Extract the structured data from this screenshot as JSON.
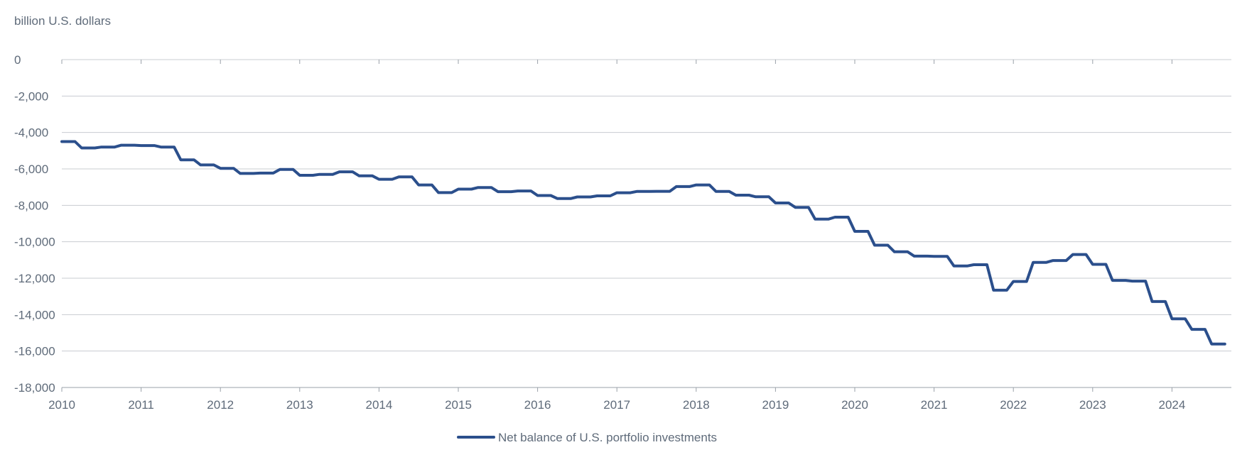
{
  "chart_data": {
    "type": "line",
    "title": "",
    "xlabel": "",
    "ylabel": "billion U.S. dollars",
    "xlim": [
      "2010-01",
      "2024-09"
    ],
    "ylim": [
      -18000,
      0
    ],
    "x_ticks": [
      "2010",
      "2011",
      "2012",
      "2013",
      "2014",
      "2015",
      "2016",
      "2017",
      "2018",
      "2019",
      "2020",
      "2021",
      "2022",
      "2023",
      "2024"
    ],
    "y_ticks": [
      "0",
      "-2,000",
      "-4,000",
      "-6,000",
      "-8,000",
      "-10,000",
      "-12,000",
      "-14,000",
      "-16,000",
      "-18,000"
    ],
    "y_tick_values": [
      0,
      -2000,
      -4000,
      -6000,
      -8000,
      -10000,
      -12000,
      -14000,
      -16000,
      -18000
    ],
    "grid": "horizontal",
    "legend_position": "bottom-center",
    "colors": {
      "series": "#2b4f8c",
      "grid": "#c8ccd1",
      "axis": "#9aa1a9",
      "text": "#5f6b7a"
    },
    "series": [
      {
        "name": "Net balance of U.S. portfolio investments",
        "x": [
          "2010-01",
          "2010-02",
          "2010-03",
          "2010-04",
          "2010-05",
          "2010-06",
          "2010-07",
          "2010-08",
          "2010-09",
          "2010-10",
          "2010-11",
          "2010-12",
          "2011-01",
          "2011-02",
          "2011-03",
          "2011-04",
          "2011-05",
          "2011-06",
          "2011-07",
          "2011-08",
          "2011-09",
          "2011-10",
          "2011-11",
          "2011-12",
          "2012-01",
          "2012-02",
          "2012-03",
          "2012-04",
          "2012-05",
          "2012-06",
          "2012-07",
          "2012-08",
          "2012-09",
          "2012-10",
          "2012-11",
          "2012-12",
          "2013-01",
          "2013-02",
          "2013-03",
          "2013-04",
          "2013-05",
          "2013-06",
          "2013-07",
          "2013-08",
          "2013-09",
          "2013-10",
          "2013-11",
          "2013-12",
          "2014-01",
          "2014-02",
          "2014-03",
          "2014-04",
          "2014-05",
          "2014-06",
          "2014-07",
          "2014-08",
          "2014-09",
          "2014-10",
          "2014-11",
          "2014-12",
          "2015-01",
          "2015-02",
          "2015-03",
          "2015-04",
          "2015-05",
          "2015-06",
          "2015-07",
          "2015-08",
          "2015-09",
          "2015-10",
          "2015-11",
          "2015-12",
          "2016-01",
          "2016-02",
          "2016-03",
          "2016-04",
          "2016-05",
          "2016-06",
          "2016-07",
          "2016-08",
          "2016-09",
          "2016-10",
          "2016-11",
          "2016-12",
          "2017-01",
          "2017-02",
          "2017-03",
          "2017-04",
          "2017-05",
          "2017-06",
          "2017-07",
          "2017-08",
          "2017-09",
          "2017-10",
          "2017-11",
          "2017-12",
          "2018-01",
          "2018-02",
          "2018-03",
          "2018-04",
          "2018-05",
          "2018-06",
          "2018-07",
          "2018-08",
          "2018-09",
          "2018-10",
          "2018-11",
          "2018-12",
          "2019-01",
          "2019-02",
          "2019-03",
          "2019-04",
          "2019-05",
          "2019-06",
          "2019-07",
          "2019-08",
          "2019-09",
          "2019-10",
          "2019-11",
          "2019-12",
          "2020-01",
          "2020-02",
          "2020-03",
          "2020-04",
          "2020-05",
          "2020-06",
          "2020-07",
          "2020-08",
          "2020-09",
          "2020-10",
          "2020-11",
          "2020-12",
          "2021-01",
          "2021-02",
          "2021-03",
          "2021-04",
          "2021-05",
          "2021-06",
          "2021-07",
          "2021-08",
          "2021-09",
          "2021-10",
          "2021-11",
          "2021-12",
          "2022-01",
          "2022-02",
          "2022-03",
          "2022-04",
          "2022-05",
          "2022-06",
          "2022-07",
          "2022-08",
          "2022-09",
          "2022-10",
          "2022-11",
          "2022-12",
          "2023-01",
          "2023-02",
          "2023-03",
          "2023-04",
          "2023-05",
          "2023-06",
          "2023-07",
          "2023-08",
          "2023-09",
          "2023-10",
          "2023-11",
          "2023-12",
          "2024-01",
          "2024-02",
          "2024-03",
          "2024-04",
          "2024-05",
          "2024-06",
          "2024-07",
          "2024-08",
          "2024-09"
        ],
        "values": [
          -4500,
          -4500,
          -4500,
          -4850,
          -4850,
          -4850,
          -4800,
          -4800,
          -4800,
          -4700,
          -4700,
          -4700,
          -4720,
          -4720,
          -4720,
          -4800,
          -4800,
          -4800,
          -5500,
          -5500,
          -5500,
          -5780,
          -5780,
          -5780,
          -5970,
          -5970,
          -5970,
          -6250,
          -6250,
          -6250,
          -6230,
          -6230,
          -6230,
          -6030,
          -6030,
          -6030,
          -6350,
          -6350,
          -6350,
          -6300,
          -6300,
          -6300,
          -6160,
          -6160,
          -6160,
          -6380,
          -6380,
          -6380,
          -6570,
          -6570,
          -6570,
          -6440,
          -6440,
          -6440,
          -6880,
          -6880,
          -6880,
          -7300,
          -7300,
          -7300,
          -7110,
          -7110,
          -7110,
          -7020,
          -7020,
          -7020,
          -7250,
          -7250,
          -7250,
          -7210,
          -7210,
          -7210,
          -7460,
          -7460,
          -7460,
          -7630,
          -7630,
          -7630,
          -7540,
          -7540,
          -7540,
          -7480,
          -7480,
          -7480,
          -7310,
          -7310,
          -7310,
          -7240,
          -7240,
          -7240,
          -7230,
          -7230,
          -7230,
          -6970,
          -6970,
          -6970,
          -6880,
          -6880,
          -6880,
          -7240,
          -7240,
          -7240,
          -7440,
          -7440,
          -7440,
          -7530,
          -7530,
          -7530,
          -7870,
          -7870,
          -7870,
          -8110,
          -8110,
          -8110,
          -8760,
          -8760,
          -8760,
          -8650,
          -8650,
          -8650,
          -9430,
          -9430,
          -9430,
          -10190,
          -10190,
          -10190,
          -10550,
          -10550,
          -10550,
          -10790,
          -10790,
          -10790,
          -10800,
          -10800,
          -10800,
          -11330,
          -11330,
          -11330,
          -11260,
          -11260,
          -11260,
          -12660,
          -12660,
          -12660,
          -12180,
          -12180,
          -12180,
          -11130,
          -11130,
          -11130,
          -11030,
          -11030,
          -11030,
          -10700,
          -10700,
          -10700,
          -11240,
          -11240,
          -11240,
          -12120,
          -12120,
          -12120,
          -12160,
          -12160,
          -12160,
          -13280,
          -13280,
          -13280,
          -14230,
          -14230,
          -14230,
          -14810,
          -14810,
          -14810,
          -15610,
          -15610,
          -15610
        ]
      }
    ]
  }
}
